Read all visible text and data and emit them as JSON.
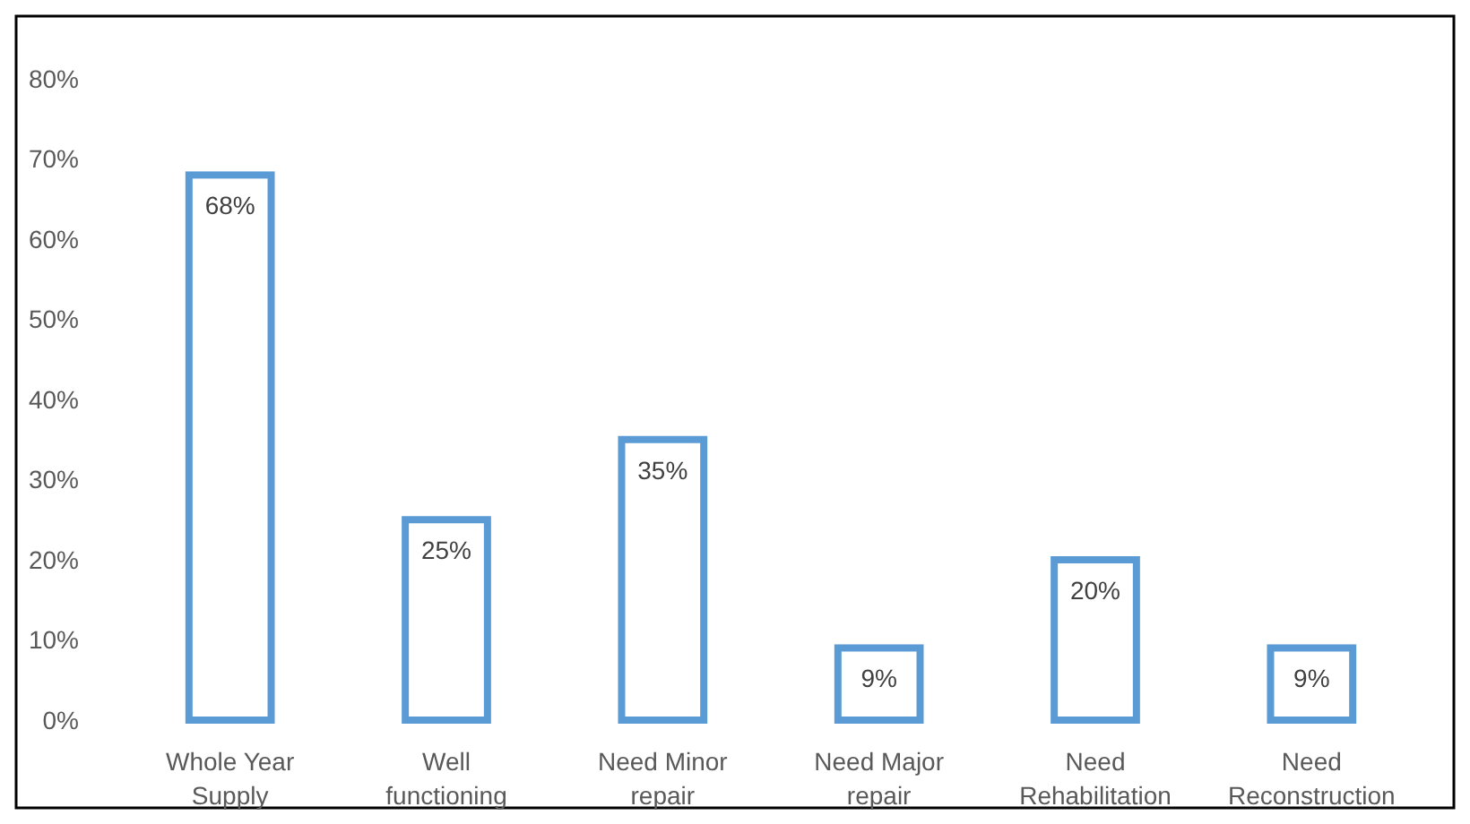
{
  "chart_data": {
    "type": "bar",
    "categories": [
      "Whole Year Supply",
      "Well functioning",
      "Need Minor repair",
      "Need Major repair",
      "Need Rehabilitation",
      "Need Reconstruction"
    ],
    "values": [
      68,
      25,
      35,
      9,
      20,
      9
    ],
    "value_labels": [
      "68%",
      "25%",
      "35%",
      "9%",
      "20%",
      "9%"
    ],
    "color": "#5b9bd5",
    "ylim": [
      0,
      80
    ],
    "yticks": [
      {
        "value": 0,
        "label": "0%"
      },
      {
        "value": 10,
        "label": "10%"
      },
      {
        "value": 20,
        "label": "20%"
      },
      {
        "value": 30,
        "label": "30%"
      },
      {
        "value": 40,
        "label": "40%"
      },
      {
        "value": 50,
        "label": "50%"
      },
      {
        "value": 60,
        "label": "60%"
      },
      {
        "value": 70,
        "label": "70%"
      },
      {
        "value": 80,
        "label": "80%"
      }
    ],
    "grid": false
  }
}
